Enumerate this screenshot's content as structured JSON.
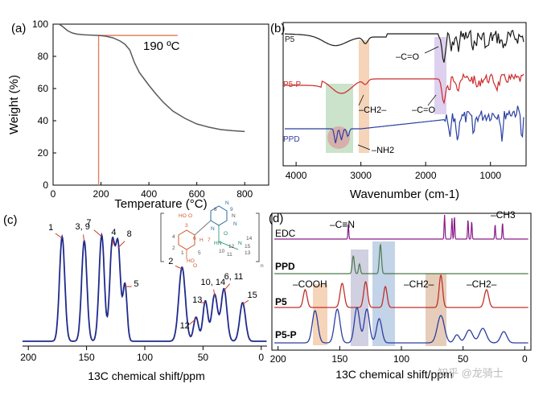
{
  "chart_data": [
    {
      "panel": "(a)",
      "type": "line",
      "xlabel": "Temperature (°C)",
      "ylabel": "Weight (%)",
      "xlim": [
        0,
        900
      ],
      "ylim": [
        0,
        100
      ],
      "xticks": [
        "0",
        "200",
        "400",
        "600",
        "800"
      ],
      "yticks": [
        "0",
        "20",
        "40",
        "60",
        "80",
        "100"
      ],
      "annotation": "190 ºC",
      "marker_x": 190,
      "marker_y": 93,
      "series": [
        {
          "color": "#5a5a5a",
          "x": [
            25,
            40,
            60,
            80,
            100,
            130,
            160,
            190,
            220,
            250,
            280,
            300,
            320,
            340,
            360,
            380,
            400,
            430,
            460,
            500,
            550,
            600,
            650,
            700,
            750,
            800
          ],
          "y": [
            100,
            98.5,
            96,
            94.5,
            93.8,
            93.4,
            93.2,
            93,
            92.5,
            91.5,
            89.5,
            87.5,
            84,
            76,
            70,
            66,
            62,
            56.5,
            51.5,
            46,
            41.5,
            38,
            36,
            34.5,
            33.8,
            33.3
          ]
        }
      ]
    },
    {
      "panel": "(b)",
      "type": "line",
      "xlabel": "Wavenumber (cm-1)",
      "xlim": [
        4200,
        450
      ],
      "xticks": [
        "4000",
        "3000",
        "2000",
        "1000"
      ],
      "series": [
        {
          "name": "P5",
          "color": "#1a1a1a"
        },
        {
          "name": "P5-P",
          "color": "#cc2a2a"
        },
        {
          "name": "PPD",
          "color": "#2a3fa0"
        }
      ],
      "annotations": [
        "–C=O",
        "–CH2–",
        "–C=O",
        "–NH2"
      ],
      "highlight_colors": [
        "#f2c9a8",
        "#b8d9b8",
        "#d8c8ec",
        "#d9a6a6"
      ]
    },
    {
      "panel": "(c)",
      "type": "line",
      "xlabel": "13C chemical shift/ppm",
      "xlim": [
        205,
        -5
      ],
      "xticks": [
        "200",
        "150",
        "100",
        "50",
        "0"
      ],
      "peak_labels": [
        "1",
        "3, 9",
        "7",
        "4",
        "8",
        "5",
        "2",
        "12",
        "13",
        "10, 14",
        "6, 11",
        "15"
      ],
      "structure_labels": [
        "HO",
        "O",
        "3",
        "4",
        "2",
        "1",
        "5",
        "6",
        "H",
        "7",
        "8",
        "N",
        "9",
        "O",
        "HN",
        "10",
        "11",
        "12",
        "N",
        "13",
        "14",
        "15",
        "HO",
        "O",
        "n",
        "N",
        "N",
        "N"
      ],
      "series": [
        {
          "color": "#1f2a8a"
        }
      ]
    },
    {
      "panel": "(d)",
      "type": "line",
      "xlabel": "13C chemical shift/ppm",
      "xlim": [
        205,
        -5
      ],
      "xticks": [
        "200",
        "150",
        "100",
        "50",
        "0"
      ],
      "series": [
        {
          "name": "EDC",
          "color": "#8a1a8a"
        },
        {
          "name": "PPD",
          "color": "#4a7a4a"
        },
        {
          "name": "P5",
          "color": "#c0302a"
        },
        {
          "name": "P5-P",
          "color": "#2a3fa0"
        }
      ],
      "annotations": [
        "–C≡N",
        "–CH3",
        "–COOH",
        "–CH2–",
        "–CH2–"
      ],
      "highlight_colors": [
        "#f2c9a8",
        "#b8d9b8",
        "#c8c8dc",
        "#b8cbe4",
        "#e0c0a8"
      ]
    }
  ],
  "watermark": "知乎 @龙骑士"
}
